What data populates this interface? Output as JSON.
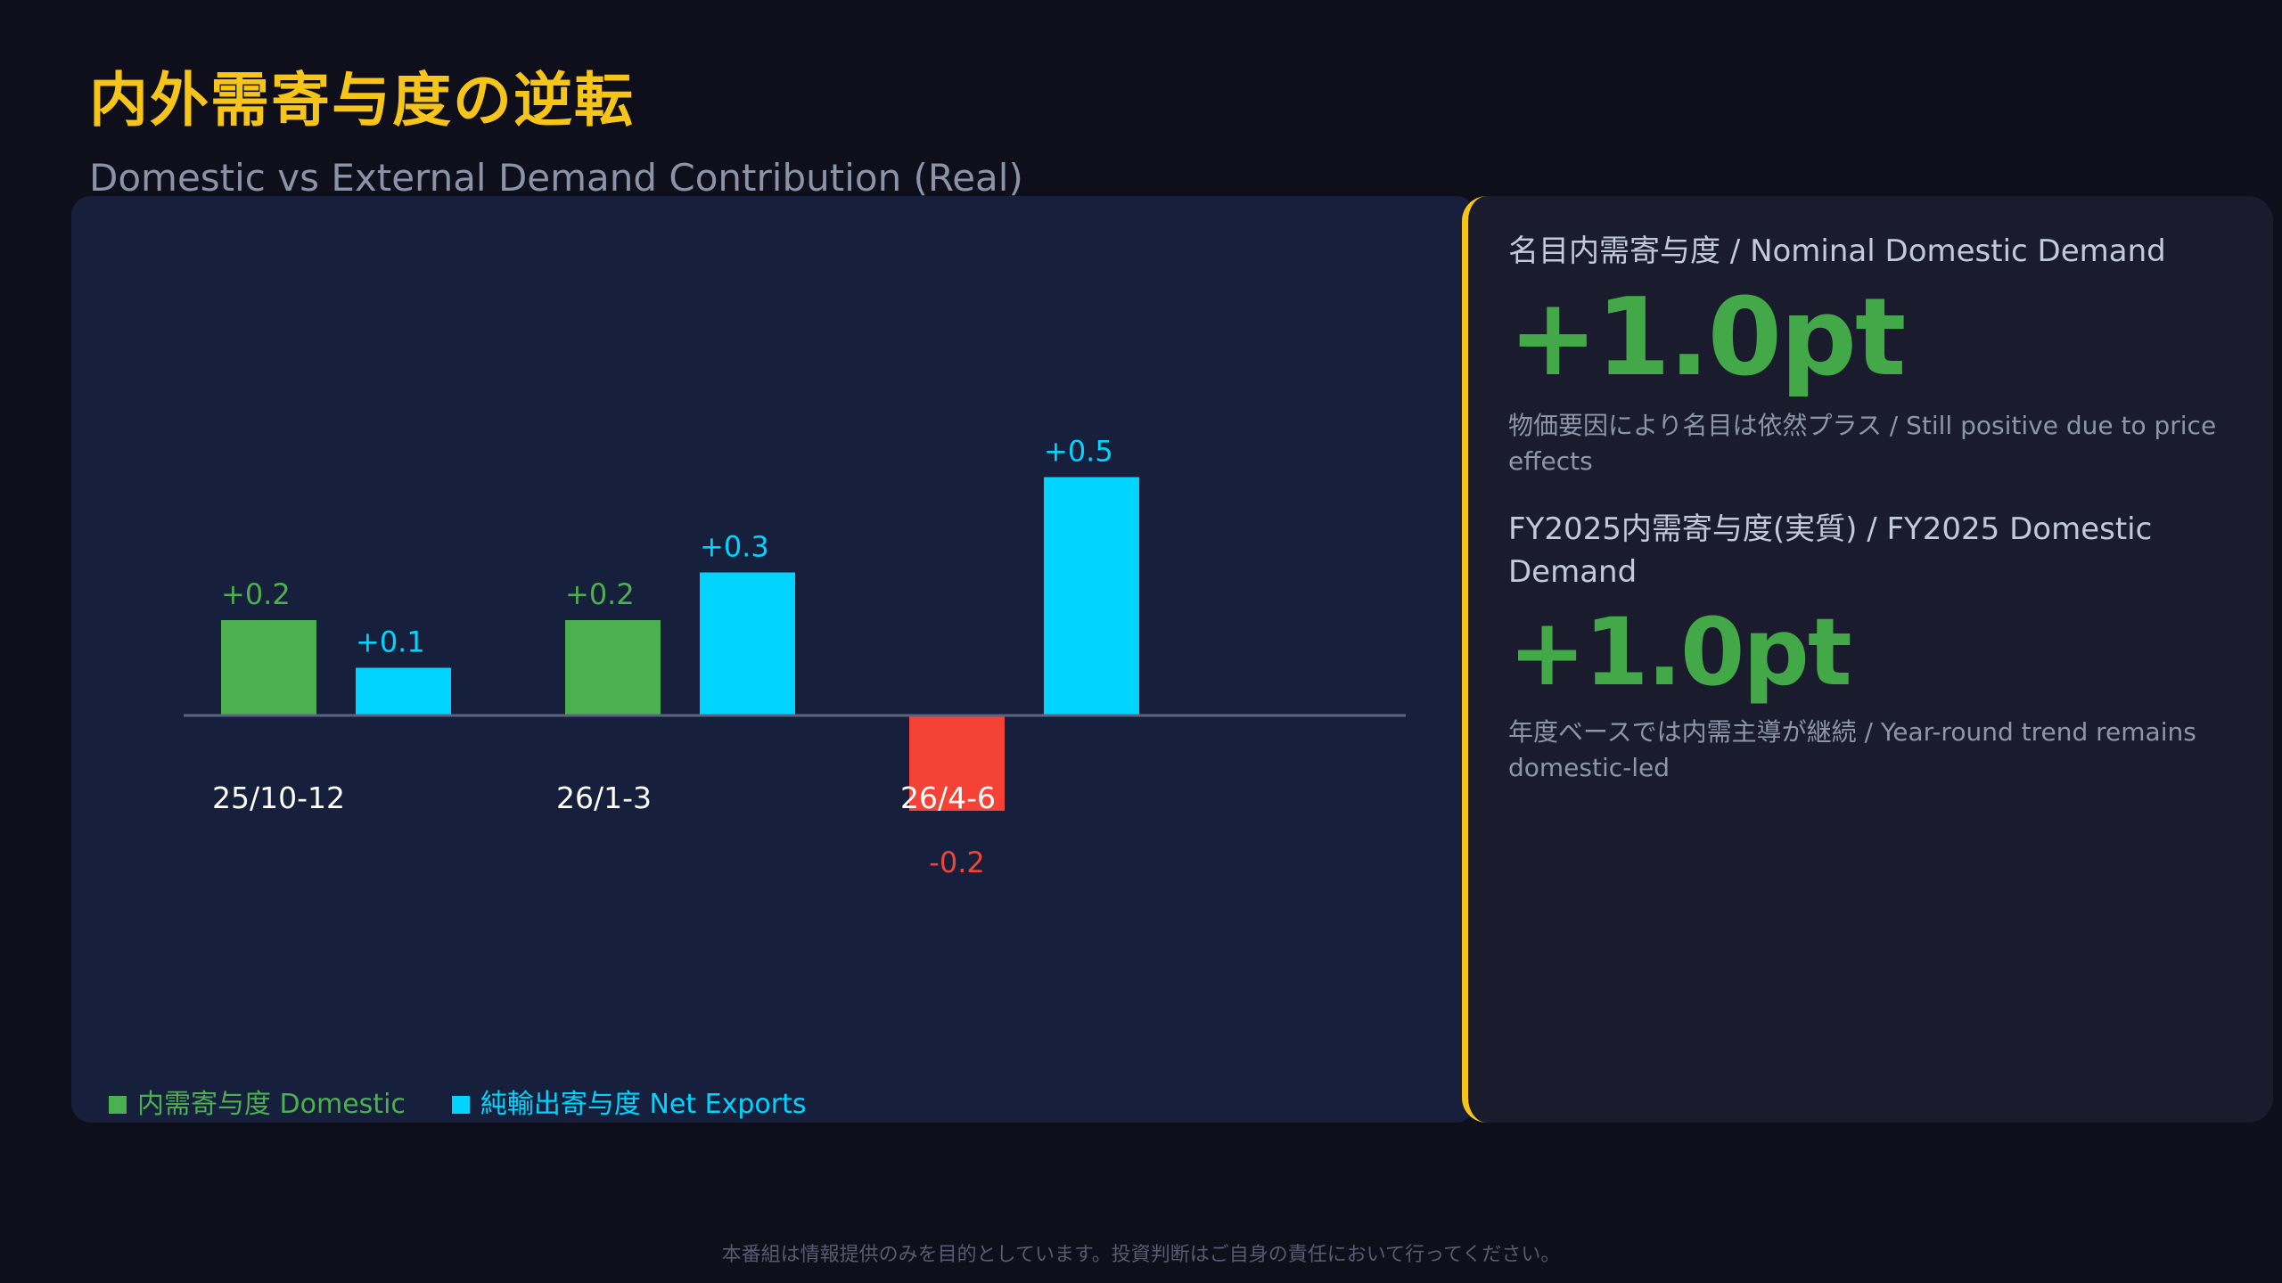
{
  "header": {
    "title": "内外需寄与度の逆転",
    "subtitle": "Domestic vs External Demand Contribution (Real)"
  },
  "colors": {
    "domestic": "#4caf50",
    "net_exports": "#00d4ff",
    "negative": "#f44336",
    "accent": "#f7c519"
  },
  "chart_data": {
    "type": "bar",
    "categories": [
      "25/10-12",
      "26/1-3",
      "26/4-6"
    ],
    "series": [
      {
        "name": "内需寄与度 Domestic",
        "values": [
          0.2,
          0.2,
          -0.2
        ],
        "labels": [
          "+0.2",
          "+0.2",
          "-0.2"
        ]
      },
      {
        "name": "純輸出寄与度 Net Exports",
        "values": [
          0.1,
          0.3,
          0.5
        ],
        "labels": [
          "+0.1",
          "+0.3",
          "+0.5"
        ]
      }
    ],
    "ylim": [
      -0.6,
      1.0
    ],
    "grid": false,
    "legend": "bottom-left"
  },
  "side": {
    "metrics": [
      {
        "label": "名目内需寄与度 / Nominal Domestic Demand",
        "value": "+1.0pt",
        "note": "物価要因により名目は依然プラス / Still positive due to price effects"
      },
      {
        "label": "FY2025内需寄与度(実質) / FY2025 Domestic Demand",
        "value": "+1.0pt",
        "note": "年度ベースでは内需主導が継続 / Year-round trend remains domestic-led"
      }
    ]
  },
  "footer": {
    "disclaimer": "本番組は情報提供のみを目的としています。投資判断はご自身の責任において行ってください。"
  }
}
